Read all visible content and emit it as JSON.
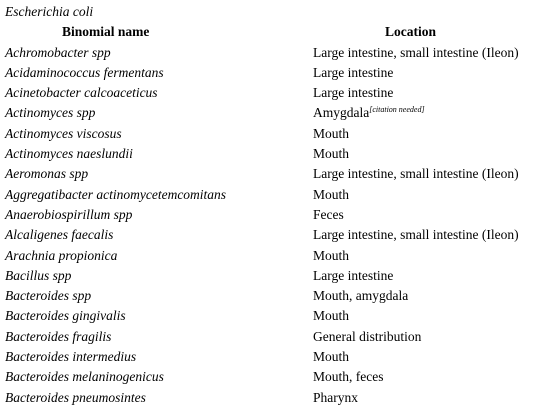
{
  "caption": "Escherichia coli",
  "headers": {
    "binomial": "Binomial name",
    "location": "Location"
  },
  "rows": [
    {
      "name": "Achromobacter spp",
      "location": "Large intestine, small intestine (Ileon)"
    },
    {
      "name": "Acidaminococcus fermentans",
      "location": "Large intestine"
    },
    {
      "name": "Acinetobacter calcoaceticus",
      "location": "Large intestine"
    },
    {
      "name": "Actinomyces spp",
      "location": "Amygdala",
      "note": "[citation needed]"
    },
    {
      "name": "Actinomyces viscosus",
      "location": "Mouth"
    },
    {
      "name": "Actinomyces naeslundii",
      "location": "Mouth"
    },
    {
      "name": "Aeromonas spp",
      "location": "Large intestine, small intestine (Ileon)"
    },
    {
      "name": "Aggregatibacter actinomycetemcomitans",
      "location": "Mouth"
    },
    {
      "name": "Anaerobiospirillum spp",
      "location": "Feces"
    },
    {
      "name": "Alcaligenes faecalis",
      "location": "Large intestine, small intestine (Ileon)"
    },
    {
      "name": "Arachnia propionica",
      "location": "Mouth"
    },
    {
      "name": "Bacillus spp",
      "location": "Large intestine"
    },
    {
      "name": "Bacteroides spp",
      "location": "Mouth, amygdala"
    },
    {
      "name": "Bacteroides gingivalis",
      "location": "Mouth"
    },
    {
      "name": "Bacteroides fragilis",
      "location": "General distribution"
    },
    {
      "name": "Bacteroides intermedius",
      "location": "Mouth"
    },
    {
      "name": "Bacteroides melaninogenicus",
      "location": "Mouth, feces"
    },
    {
      "name": "Bacteroides pneumosintes",
      "location": "Pharynx"
    }
  ]
}
